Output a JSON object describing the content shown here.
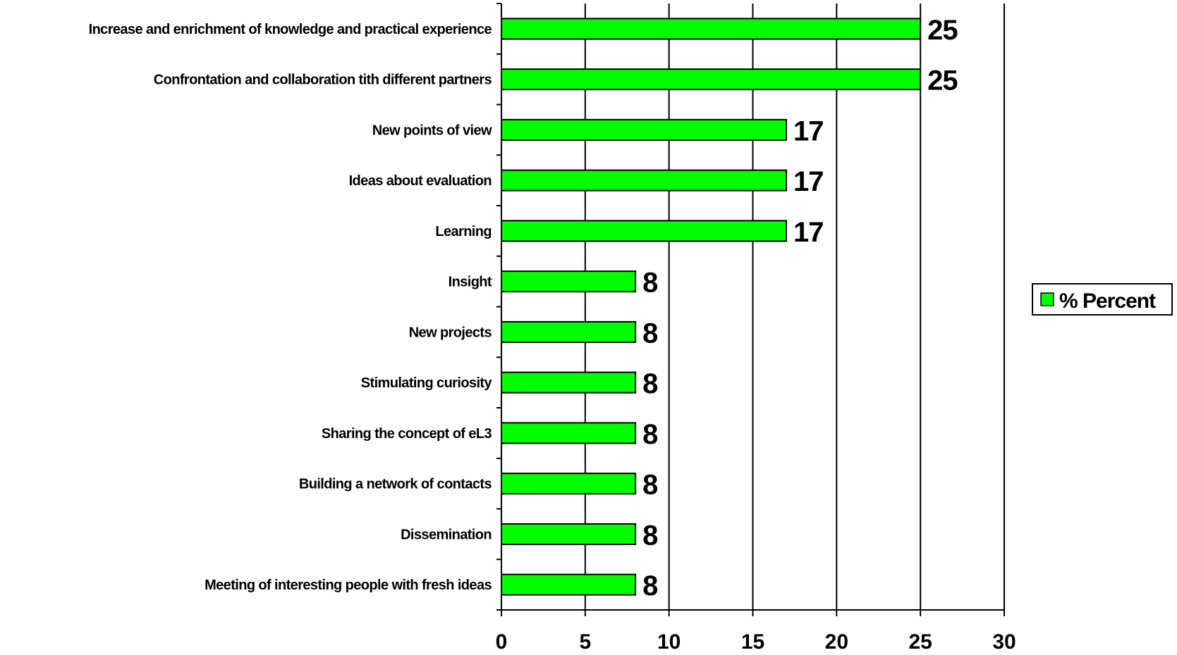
{
  "chart_data": {
    "type": "bar",
    "orientation": "horizontal",
    "categories": [
      "Increase and enrichment of knowledge and practical experience",
      "Confrontation and collaboration tith different partners",
      "New points of view",
      "Ideas about evaluation",
      "Learning",
      "Insight",
      "New projects",
      "Stimulating curiosity",
      "Sharing the concept of eL3",
      "Building a network of contacts",
      "Dissemination",
      "Meeting of interesting people with fresh ideas"
    ],
    "series": [
      {
        "name": "% Percent",
        "values": [
          25,
          25,
          17,
          17,
          17,
          8,
          8,
          8,
          8,
          8,
          8,
          8
        ],
        "color": "#00ff00"
      }
    ],
    "data_labels": [
      "25",
      "25",
      "17",
      "17",
      "17",
      "8",
      "8",
      "8",
      "8",
      "8",
      "8",
      "8"
    ],
    "xlim": [
      0,
      30
    ],
    "x_ticks": [
      "0",
      "5",
      "10",
      "15",
      "20",
      "25",
      "30"
    ],
    "grid": "vertical",
    "legend_position": "right",
    "title": "",
    "xlabel": "",
    "ylabel": ""
  }
}
